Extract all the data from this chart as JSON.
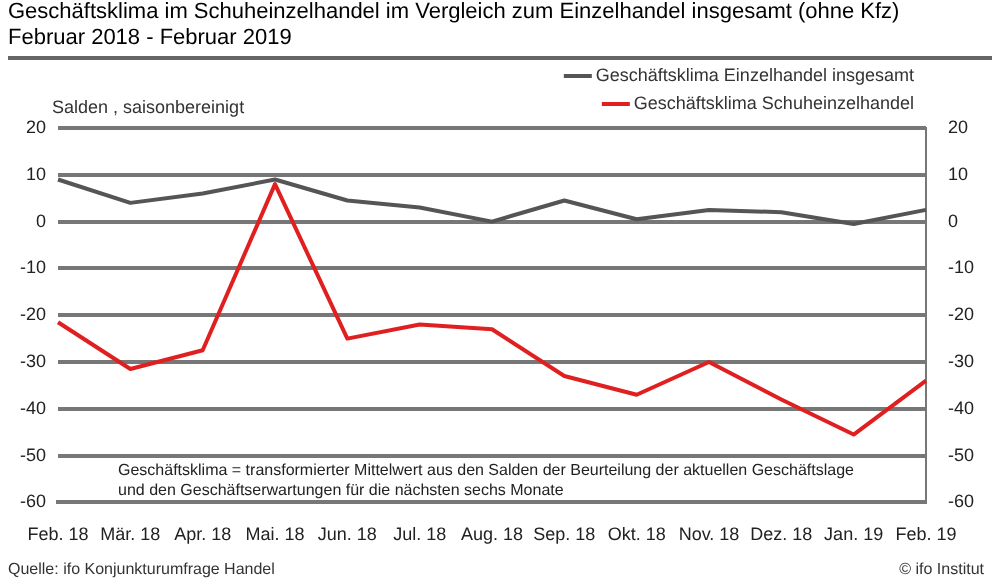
{
  "chart_data": {
    "type": "line",
    "title": "Geschäftsklima im Schuheinzelhandel im Vergleich zum Einzelhandel insgesamt (ohne Kfz)",
    "subtitle": "Februar 2018 -  Februar 2019",
    "ylabel": "Salden , saisonbereinigt",
    "categories": [
      "Feb. 18",
      "Mär. 18",
      "Apr. 18",
      "Mai. 18",
      "Jun. 18",
      "Jul. 18",
      "Aug. 18",
      "Sep. 18",
      "Okt. 18",
      "Nov. 18",
      "Dez. 18",
      "Jan. 19",
      "Feb. 19"
    ],
    "series": [
      {
        "name": "Geschäftsklima Einzelhandel insgesamt",
        "color": "#555555",
        "values": [
          9,
          4,
          6,
          9,
          4.5,
          3,
          0,
          4.5,
          0.5,
          2.5,
          2,
          -0.5,
          2.5
        ]
      },
      {
        "name": "Geschäftsklima Schuheinzelhandel",
        "color": "#e02020",
        "values": [
          -21.5,
          -31.5,
          -27.5,
          8,
          -25,
          -22,
          -23,
          -33,
          -37,
          -30,
          -38,
          -45.5,
          -34
        ]
      }
    ],
    "ylim": [
      -60,
      20
    ],
    "yticks": [
      -60,
      -50,
      -40,
      -30,
      -20,
      -10,
      0,
      10,
      20
    ],
    "y2lim": [
      -60,
      20
    ],
    "y2ticks": [
      -60,
      -50,
      -40,
      -30,
      -20,
      -10,
      0,
      10,
      20
    ],
    "grid": "y",
    "legend": "top right",
    "marker": "none",
    "line_style": "solid",
    "annotations": [
      "Geschäftsklima = transformierter Mittelwert aus den Salden der Beurteilung der aktuellen Geschäftslage und den Geschäftserwartungen für die nächsten sechs Monate",
      "Quelle: ifo Konjunkturumfrage Handel",
      "© ifo Institut"
    ]
  }
}
